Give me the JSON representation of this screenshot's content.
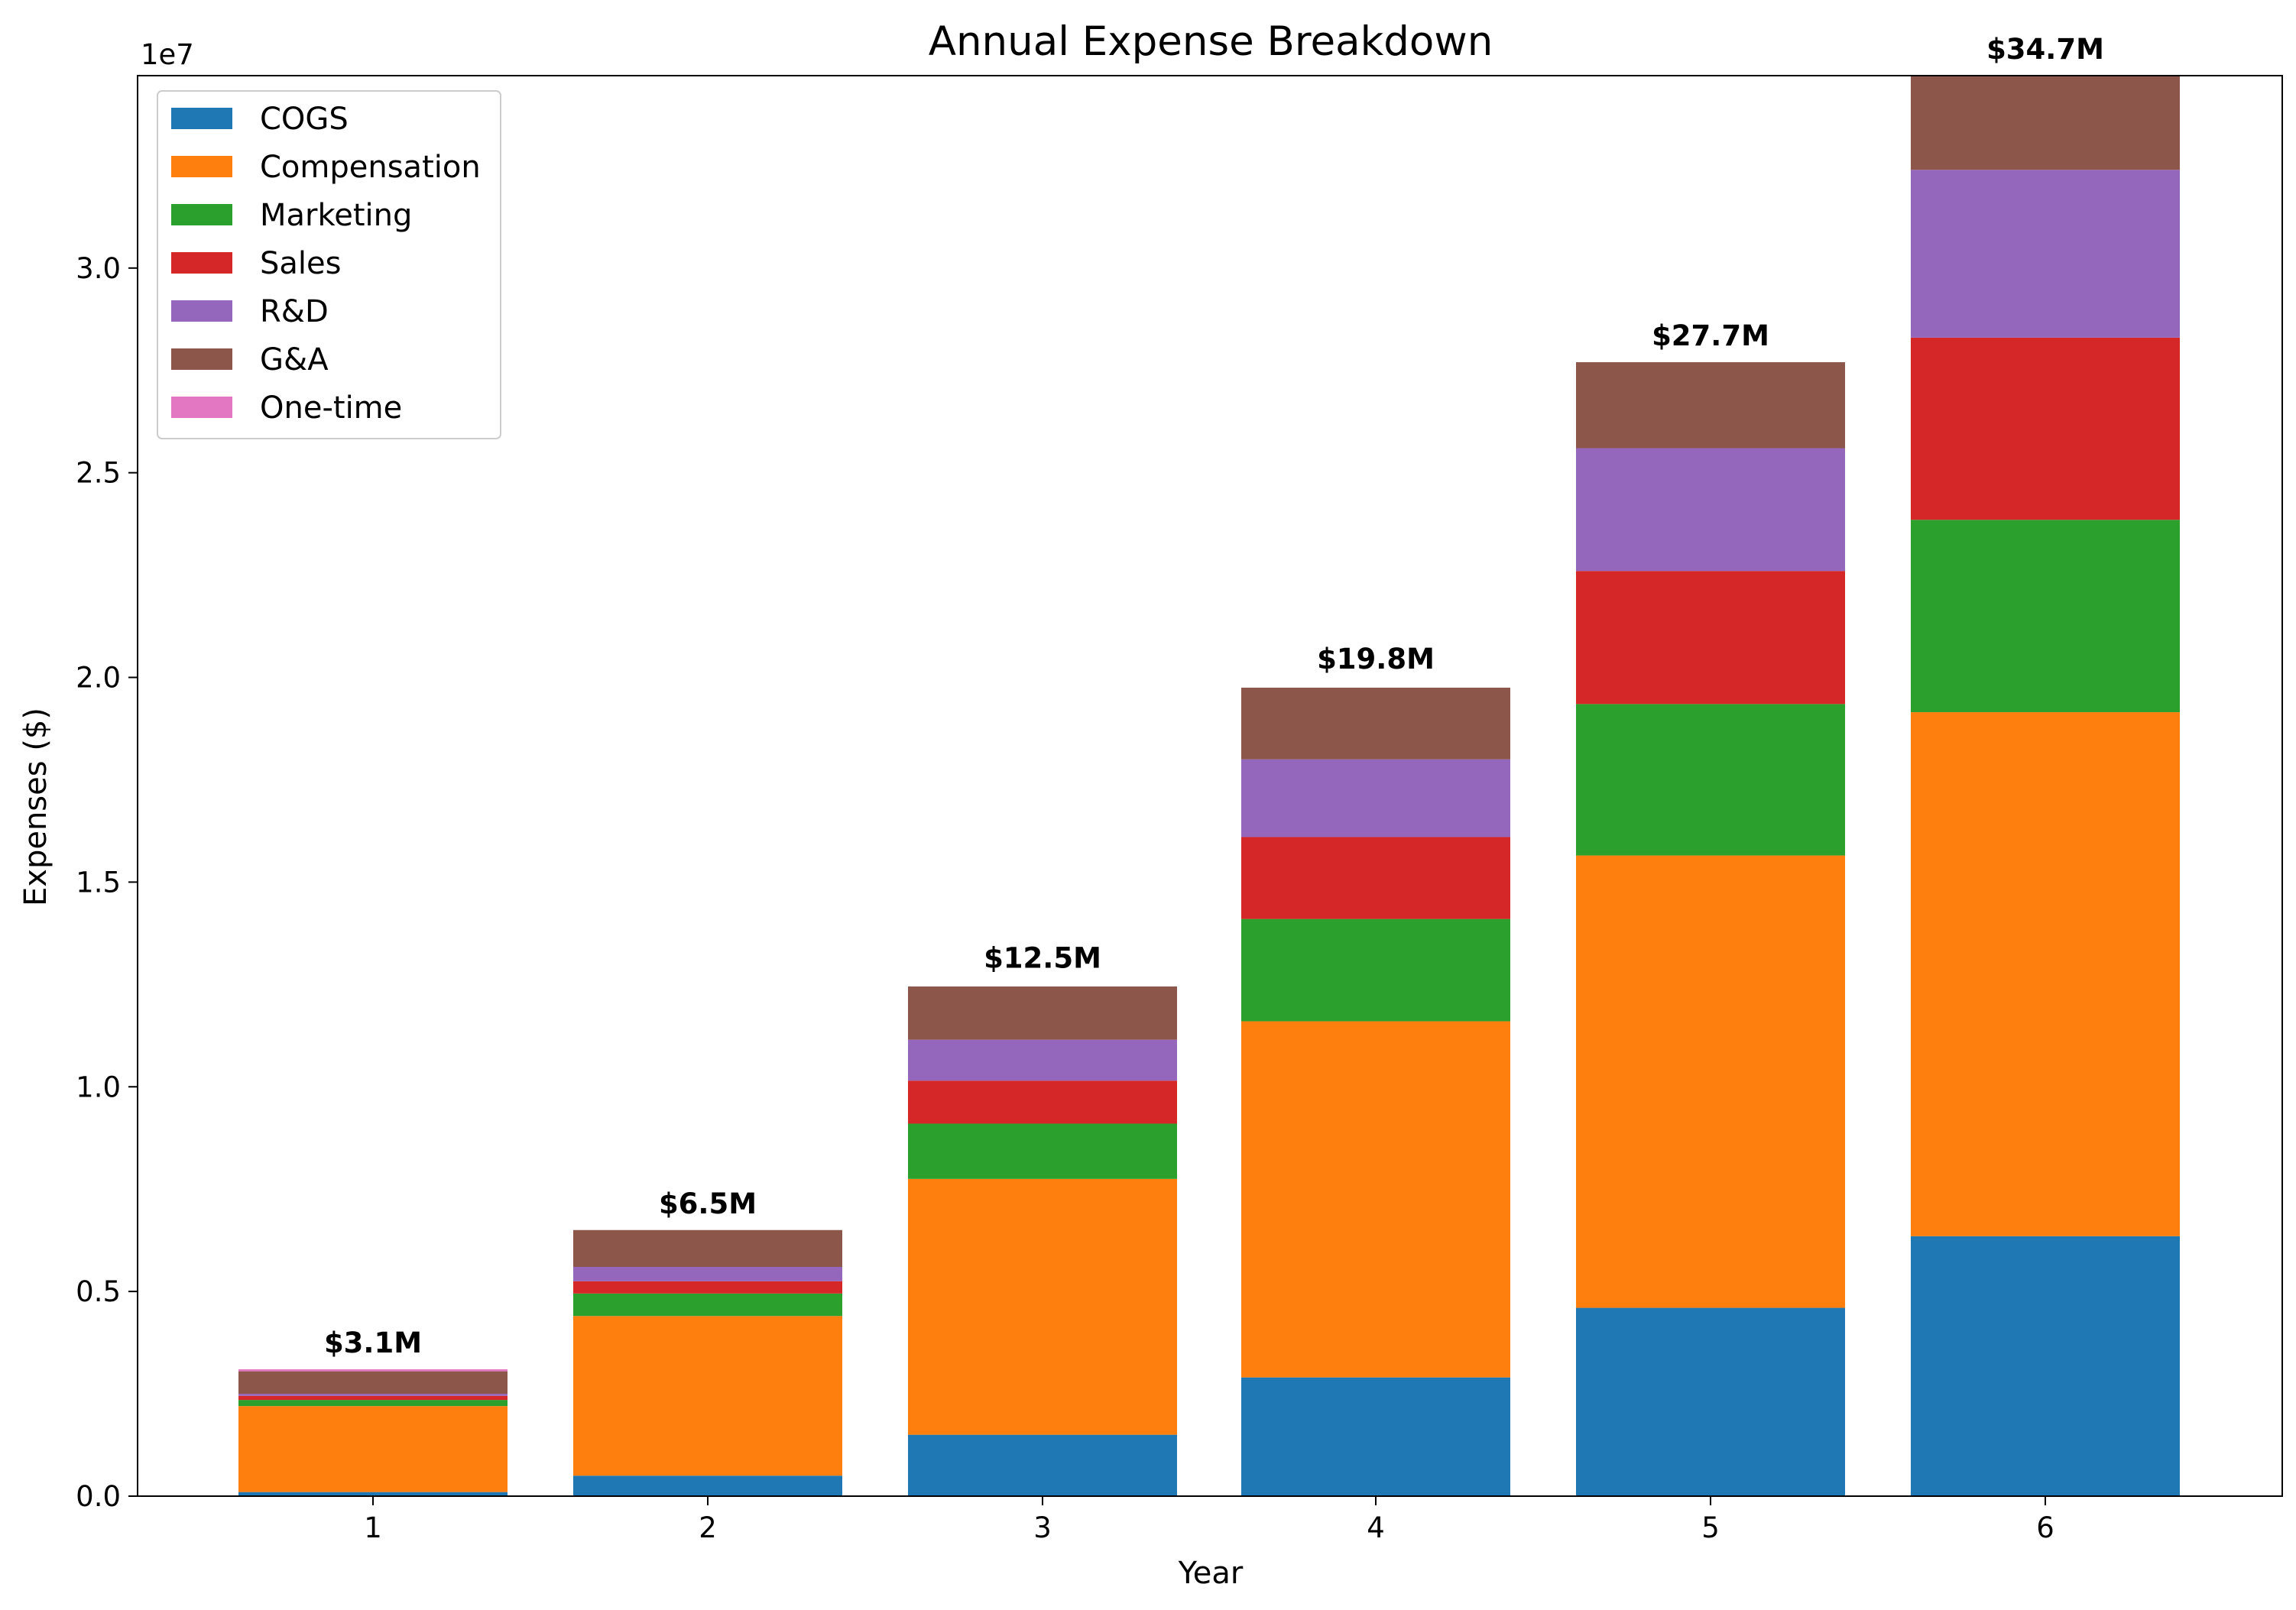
{
  "chart_data": {
    "type": "bar",
    "stacked": true,
    "title": "Annual Expense Breakdown",
    "xlabel": "Year",
    "ylabel": "Expenses ($)",
    "y_offset_text": "1e7",
    "categories": [
      "1",
      "2",
      "3",
      "4",
      "5",
      "6"
    ],
    "ylim": [
      0,
      34700000
    ],
    "yticks": [
      0,
      5000000,
      10000000,
      15000000,
      20000000,
      25000000,
      30000000
    ],
    "ytick_labels": [
      "0.0",
      "0.5",
      "1.0",
      "1.5",
      "2.0",
      "2.5",
      "3.0"
    ],
    "grid": false,
    "legend_position": "top-left",
    "series": [
      {
        "name": "COGS",
        "color": "#1f77b4",
        "values": [
          100000,
          500000,
          1500000,
          2900000,
          4600000,
          6350000
        ]
      },
      {
        "name": "Compensation",
        "color": "#ff7f0e",
        "values": [
          2100000,
          3900000,
          6250000,
          8700000,
          11050000,
          12800000
        ]
      },
      {
        "name": "Marketing",
        "color": "#2ca02c",
        "values": [
          150000,
          550000,
          1350000,
          2500000,
          3700000,
          4700000
        ]
      },
      {
        "name": "Sales",
        "color": "#d62728",
        "values": [
          100000,
          300000,
          1050000,
          2000000,
          3250000,
          4450000
        ]
      },
      {
        "name": "R&D",
        "color": "#9467bd",
        "values": [
          50000,
          350000,
          1000000,
          1900000,
          3000000,
          4100000
        ]
      },
      {
        "name": "G&A",
        "color": "#8c564b",
        "values": [
          550000,
          900000,
          1300000,
          1750000,
          2100000,
          2300000
        ]
      },
      {
        "name": "One-time",
        "color": "#e377c2",
        "values": [
          50000,
          0,
          0,
          0,
          0,
          0
        ]
      }
    ],
    "totals": [
      3100000,
      6500000,
      12500000,
      19800000,
      27700000,
      34700000
    ],
    "total_labels": [
      "$3.1M",
      "$6.5M",
      "$12.5M",
      "$19.8M",
      "$27.7M",
      "$34.7M"
    ]
  }
}
